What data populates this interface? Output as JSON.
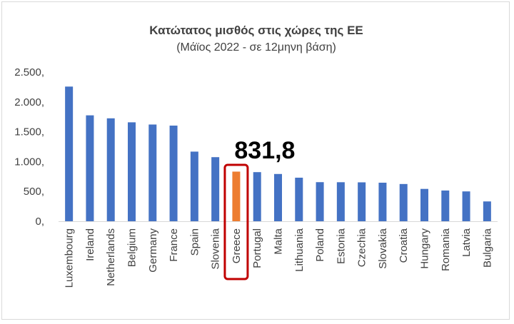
{
  "chart_data": {
    "type": "bar",
    "title": "Κατώτατος μισθός στις χώρες της ΕΕ",
    "subtitle": "(Μάϊος 2022 - σε 12μηνη βάση)",
    "categories": [
      "Luxembourg",
      "Ireland",
      "Netherlands",
      "Belgium",
      "Germany",
      "France",
      "Spain",
      "Slovenia",
      "Greece",
      "Portugal",
      "Malta",
      "Lithuania",
      "Poland",
      "Estonia",
      "Czechia",
      "Slovakia",
      "Croatia",
      "Hungary",
      "Romania",
      "Latvia",
      "Bulgaria"
    ],
    "values": [
      2257,
      1775,
      1725,
      1658,
      1621,
      1603,
      1167,
      1074,
      831.8,
      823,
      792,
      730,
      655,
      654,
      652,
      646,
      624,
      542,
      515,
      500,
      332
    ],
    "ytick_labels": [
      "0,",
      "500,",
      "1.000,",
      "1.500,",
      "2.000,",
      "2.500,"
    ],
    "ytick_values": [
      0,
      500,
      1000,
      1500,
      2000,
      2500
    ],
    "ylim": [
      0,
      2500
    ],
    "xlabel": "",
    "ylabel": "",
    "grid": false,
    "highlight": {
      "category": "Greece",
      "label": "831,8",
      "color": "#ed7d31"
    },
    "bar_color": "#4472c4",
    "highlight_box_color": "#c00000"
  }
}
